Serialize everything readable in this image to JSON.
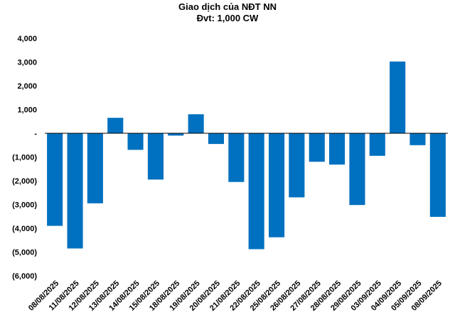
{
  "chart_data": {
    "type": "bar",
    "title": "Giao dịch của NĐT NN",
    "subtitle": "Đvt: 1,000 CW",
    "categories": [
      "08/08/2025",
      "11/08/2025",
      "12/08/2025",
      "13/08/2025",
      "14/08/2025",
      "15/08/2025",
      "18/08/2025",
      "19/08/2025",
      "20/08/2025",
      "21/08/2025",
      "22/08/2025",
      "25/08/2025",
      "26/08/2025",
      "27/08/2025",
      "28/08/2025",
      "29/08/2025",
      "03/09/2025",
      "04/09/2025",
      "05/09/2025",
      "08/09/2025"
    ],
    "values": [
      -3900,
      -4850,
      -2950,
      650,
      -700,
      -1950,
      -100,
      800,
      -450,
      -2050,
      -4880,
      -4380,
      -2700,
      -1200,
      -1320,
      -3020,
      -950,
      3020,
      -500,
      -3520
    ],
    "ylim": [
      -6000,
      4000
    ],
    "y_ticks": [
      {
        "value": 4000,
        "label": "4,000"
      },
      {
        "value": 3000,
        "label": "3,000"
      },
      {
        "value": 2000,
        "label": "2,000"
      },
      {
        "value": 1000,
        "label": "1,000"
      },
      {
        "value": 0,
        "label": "-"
      },
      {
        "value": -1000,
        "label": "(1,000)"
      },
      {
        "value": -2000,
        "label": "(2,000)"
      },
      {
        "value": -3000,
        "label": "(3,000)"
      },
      {
        "value": -4000,
        "label": "(4,000)"
      },
      {
        "value": -5000,
        "label": "(5,000)"
      },
      {
        "value": -6000,
        "label": "(6,000)"
      }
    ],
    "bar_color": "#0070C0",
    "axis_color": "#000000",
    "grid": false,
    "legend": "none"
  }
}
